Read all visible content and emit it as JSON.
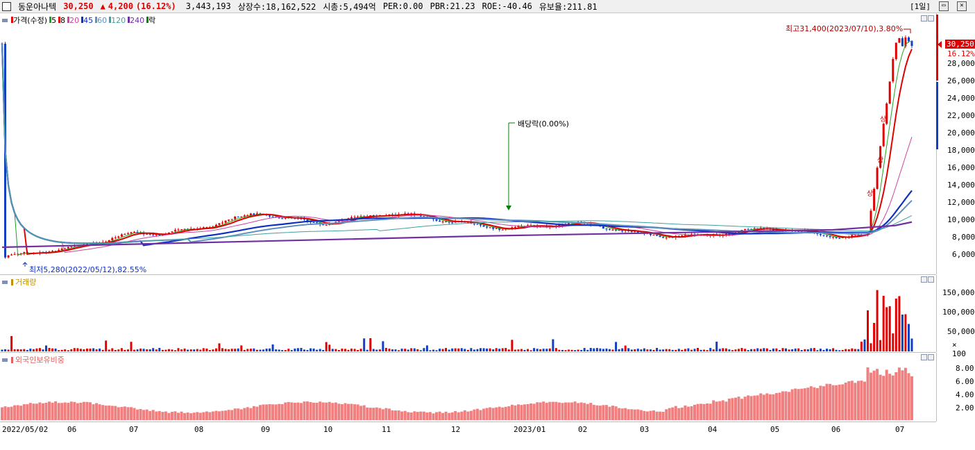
{
  "header": {
    "stock_name": "동운아나텍",
    "price": "30,250",
    "change_arrow": "▲",
    "change": "4,200",
    "change_pct": "(16.12%)",
    "volume": "3,443,193",
    "listed_shares": "상장수:18,162,522",
    "market_cap": "시총:5,494억",
    "per": "PER:0.00",
    "pbr": "PBR:21.23",
    "roe": "ROE:-40.46",
    "float_ratio": "유보율:211.81",
    "period": "[1일]"
  },
  "price_panel": {
    "legend": [
      {
        "label": "가격(수정)",
        "color": "#e00000"
      },
      {
        "label": "5",
        "color": "#20a020"
      },
      {
        "label": "8",
        "color": "#e00000"
      },
      {
        "label": "20",
        "color": "#d040a0"
      },
      {
        "label": "45",
        "color": "#1030c0"
      },
      {
        "label": "60",
        "color": "#6090c0"
      },
      {
        "label": "120",
        "color": "#40a0a0"
      },
      {
        "label": "240",
        "color": "#7030a0"
      },
      {
        "label": "락",
        "color": "#008000"
      }
    ],
    "y_ticks": [
      "28,000",
      "26,000",
      "24,000",
      "22,000",
      "20,000",
      "18,000",
      "16,000",
      "14,000",
      "12,000",
      "10,000",
      "8,000",
      "6,000"
    ],
    "current_price_label": "30,250",
    "current_pct_label": "16.12%",
    "high_annotation": "최고31,400(2023/07/10),3.80%",
    "low_annotation": "최저5,280(2022/05/12),82.55%",
    "dividend_annotation": "배당락(0.00%)",
    "upper_limit_marks": [
      "상",
      "상",
      "상"
    ]
  },
  "volume_panel": {
    "legend": "거래량",
    "y_ticks": [
      "150,000",
      "100,000",
      "50,000"
    ],
    "unit": "× 100"
  },
  "foreign_panel": {
    "legend": "외국인보유비중",
    "y_ticks": [
      "8.00",
      "6.00",
      "4.00",
      "2.00"
    ]
  },
  "x_labels": [
    "2022/05/02",
    "06",
    "07",
    "08",
    "09",
    "10",
    "11",
    "12",
    "2023/01",
    "02",
    "03",
    "04",
    "05",
    "06",
    "07"
  ],
  "colors": {
    "up": "#e00000",
    "down": "#1040c0",
    "foreign_bar": "#f08080",
    "ma240": "#7030a0"
  },
  "chart_data": {
    "type": "candlestick",
    "price_range": [
      4500,
      32000
    ],
    "monthly_close_path": [
      {
        "x": "2022/05",
        "close": 5600
      },
      {
        "x": "2022/06",
        "close": 6400
      },
      {
        "x": "2022/07",
        "close": 8600
      },
      {
        "x": "2022/08",
        "close": 8700
      },
      {
        "x": "2022/09",
        "close": 10600
      },
      {
        "x": "2022/10",
        "close": 9800
      },
      {
        "x": "2022/11",
        "close": 10500
      },
      {
        "x": "2022/12",
        "close": 9800
      },
      {
        "x": "2023/01",
        "close": 9200
      },
      {
        "x": "2023/02",
        "close": 9300
      },
      {
        "x": "2023/03",
        "close": 8400
      },
      {
        "x": "2023/04",
        "close": 8300
      },
      {
        "x": "2023/05",
        "close": 8700
      },
      {
        "x": "2023/06",
        "close": 8300
      },
      {
        "x": "2023/07",
        "close": 30250
      }
    ],
    "foreign_ownership_pct_range": [
      0,
      9
    ]
  }
}
